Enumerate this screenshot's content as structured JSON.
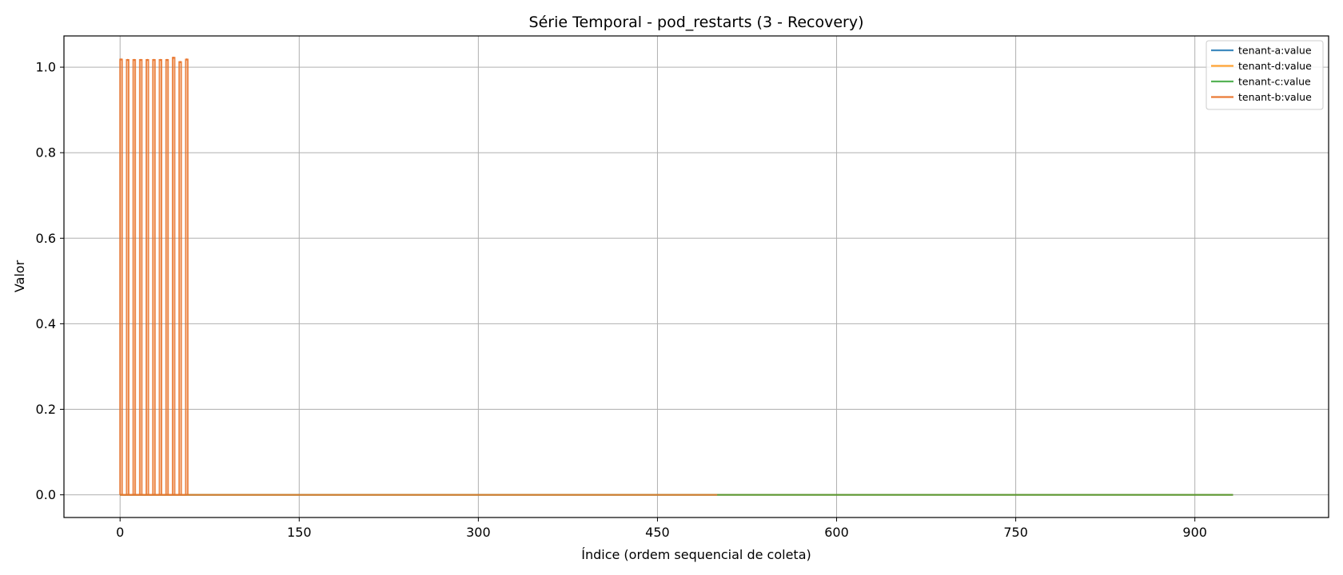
{
  "chart_data": {
    "type": "line",
    "title": "Série Temporal - pod_restarts (3 - Recovery)",
    "xlabel": "Índice (ordem sequencial de coleta)",
    "ylabel": "Valor",
    "xlim": [
      -47,
      1012
    ],
    "ylim": [
      -0.053,
      1.073
    ],
    "xticks": [
      0,
      150,
      300,
      450,
      600,
      750,
      900
    ],
    "yticks": [
      0.0,
      0.2,
      0.4,
      0.6,
      0.8,
      1.0
    ],
    "ytick_labels": [
      "0.0",
      "0.2",
      "0.4",
      "0.6",
      "0.8",
      "1.0"
    ],
    "grid": true,
    "legend_position": "top-right",
    "series": [
      {
        "name": "tenant-a:value",
        "color": "#1f77b4",
        "alpha": 0.75,
        "zero_segments": [
          [
            0,
            932
          ]
        ],
        "spikes": []
      },
      {
        "name": "tenant-d:value",
        "color": "#ff8c00",
        "alpha": 0.7,
        "zero_segments": [
          [
            0,
            932
          ]
        ],
        "spikes": []
      },
      {
        "name": "tenant-c:value",
        "color": "#2ca02c",
        "alpha": 0.7,
        "zero_segments": [
          [
            0,
            932
          ]
        ],
        "spikes": []
      },
      {
        "name": "tenant-b:value",
        "color": "#e9742b",
        "alpha": 0.85,
        "zero_segments": [
          [
            0,
            500
          ]
        ],
        "spikes": [
          {
            "x": 0,
            "y": 1.018
          },
          {
            "x": 5.5,
            "y": 1.017
          },
          {
            "x": 11,
            "y": 1.017
          },
          {
            "x": 16.5,
            "y": 1.017
          },
          {
            "x": 22,
            "y": 1.017
          },
          {
            "x": 27.5,
            "y": 1.017
          },
          {
            "x": 33,
            "y": 1.017
          },
          {
            "x": 38.5,
            "y": 1.017
          },
          {
            "x": 44,
            "y": 1.022
          },
          {
            "x": 49.5,
            "y": 1.012
          },
          {
            "x": 55,
            "y": 1.018
          }
        ]
      }
    ]
  }
}
